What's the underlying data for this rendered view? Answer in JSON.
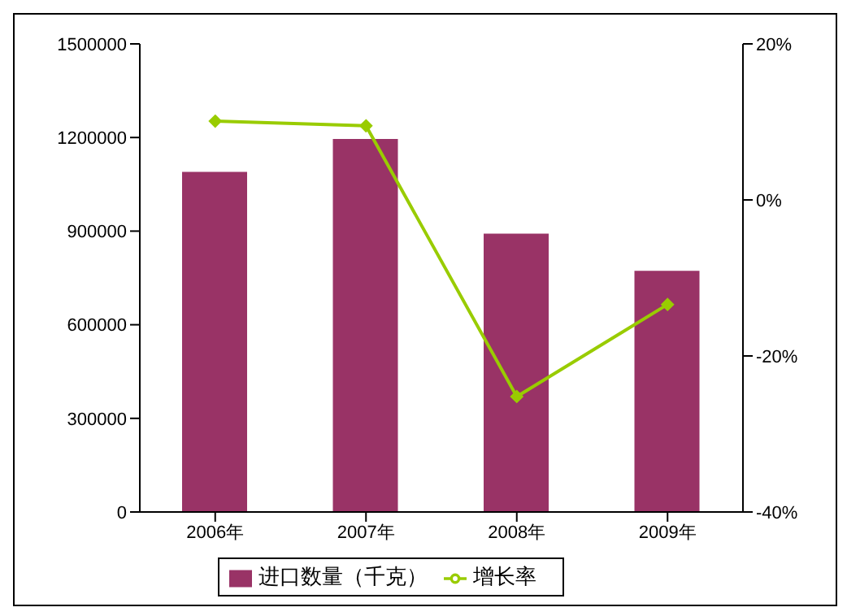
{
  "chart_data": {
    "type": "bar",
    "categories": [
      "2006年",
      "2007年",
      "2008年",
      "2009年"
    ],
    "series": [
      {
        "name": "进口数量（千克）",
        "color": "#993366",
        "values": [
          1090000,
          1195000,
          892000,
          773000
        ]
      },
      {
        "name": "增长率",
        "type": "line",
        "axis": "y2",
        "color": "#99cc00",
        "values": [
          10.1,
          9.5,
          -25.2,
          -13.4
        ]
      }
    ],
    "ylim": [
      0,
      1500000
    ],
    "yticks": [
      0,
      300000,
      600000,
      900000,
      1200000,
      1500000
    ],
    "y2lim": [
      -40,
      20
    ],
    "y2ticks": [
      {
        "value": -40,
        "label": "-40%"
      },
      {
        "value": -20,
        "label": "-20%"
      },
      {
        "value": 0,
        "label": "0%"
      },
      {
        "value": 20,
        "label": "20%"
      }
    ],
    "grid": false,
    "legend": "bottom",
    "marker": "diamond",
    "line_style": "solid"
  }
}
